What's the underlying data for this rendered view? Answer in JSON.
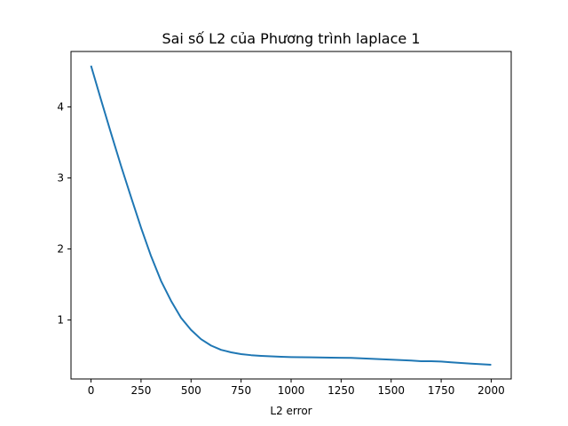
{
  "chart_data": {
    "type": "line",
    "title": "Sai số L2 của Phương trình laplace 1",
    "xlabel": "L2 error",
    "ylabel": "",
    "xlim": [
      -100,
      2100
    ],
    "ylim": [
      0.17,
      4.78
    ],
    "x_ticks": [
      0,
      250,
      500,
      750,
      1000,
      1250,
      1500,
      1750,
      2000
    ],
    "y_ticks": [
      1,
      2,
      3,
      4
    ],
    "grid": false,
    "series": [
      {
        "color": "#1f77b4",
        "x": [
          0,
          50,
          100,
          150,
          200,
          250,
          300,
          350,
          400,
          450,
          500,
          550,
          600,
          650,
          700,
          750,
          800,
          850,
          900,
          950,
          1000,
          1100,
          1200,
          1300,
          1400,
          1500,
          1600,
          1650,
          1700,
          1750,
          1800,
          1900,
          2000
        ],
        "y": [
          4.58,
          4.1,
          3.63,
          3.17,
          2.73,
          2.3,
          1.9,
          1.55,
          1.27,
          1.03,
          0.86,
          0.73,
          0.64,
          0.58,
          0.545,
          0.52,
          0.505,
          0.495,
          0.488,
          0.482,
          0.478,
          0.474,
          0.47,
          0.466,
          0.455,
          0.442,
          0.43,
          0.42,
          0.42,
          0.415,
          0.405,
          0.385,
          0.37
        ]
      }
    ]
  }
}
